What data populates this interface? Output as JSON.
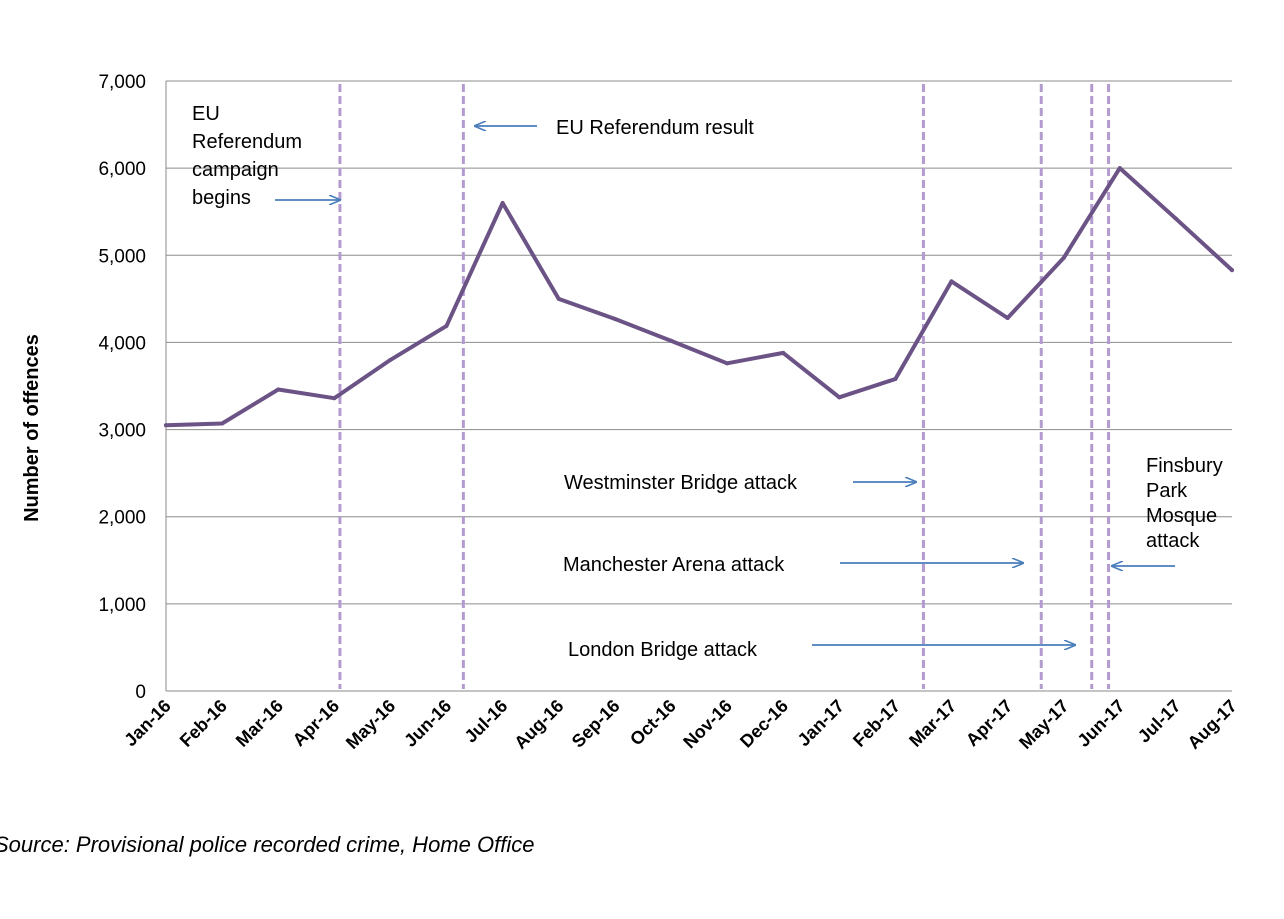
{
  "chart_data": {
    "type": "line",
    "title": "",
    "xlabel": "",
    "ylabel": "Number of offences",
    "ylim": [
      0,
      7000
    ],
    "yticks": [
      "0",
      "1,000",
      "2,000",
      "3,000",
      "4,000",
      "5,000",
      "6,000",
      "7,000"
    ],
    "yticks_values": [
      0,
      1000,
      2000,
      3000,
      4000,
      5000,
      6000,
      7000
    ],
    "categories": [
      "Jan-16",
      "Feb-16",
      "Mar-16",
      "Apr-16",
      "May-16",
      "Jun-16",
      "Jul-16",
      "Aug-16",
      "Sep-16",
      "Oct-16",
      "Nov-16",
      "Dec-16",
      "Jan-17",
      "Feb-17",
      "Mar-17",
      "Apr-17",
      "May-17",
      "Jun-17",
      "Jul-17",
      "Aug-17"
    ],
    "series": [
      {
        "values": [
          3050,
          3070,
          3460,
          3360,
          3800,
          4190,
          5600,
          4500,
          4270,
          4020,
          3760,
          3880,
          3370,
          3580,
          4700,
          4280,
          4970,
          6000,
          5420,
          4830
        ]
      }
    ],
    "grid": true,
    "line_color": "#6b5386",
    "event_line_color": "#b39bd1",
    "events": [
      {
        "position": 3.1,
        "label": "EU Referendum campaign begins"
      },
      {
        "position": 5.3,
        "label": "EU Referendum result"
      },
      {
        "position": 13.5,
        "label": "Westminster Bridge attack"
      },
      {
        "position": 15.6,
        "label": "Manchester Arena attack"
      },
      {
        "position": 16.5,
        "label": "London Bridge attack"
      },
      {
        "position": 16.8,
        "label": "Finsbury Park Mosque attack"
      }
    ],
    "annotations": {
      "campaign": [
        "EU",
        "Referendum",
        "campaign",
        "begins"
      ],
      "result": "EU Referendum result",
      "westminster": "Westminster Bridge attack",
      "manchester": "Manchester Arena attack",
      "london": "London Bridge attack",
      "finsbury": [
        "Finsbury",
        "Park",
        "Mosque",
        "attack"
      ]
    }
  },
  "source": "Source: Provisional police recorded crime, Home Office"
}
